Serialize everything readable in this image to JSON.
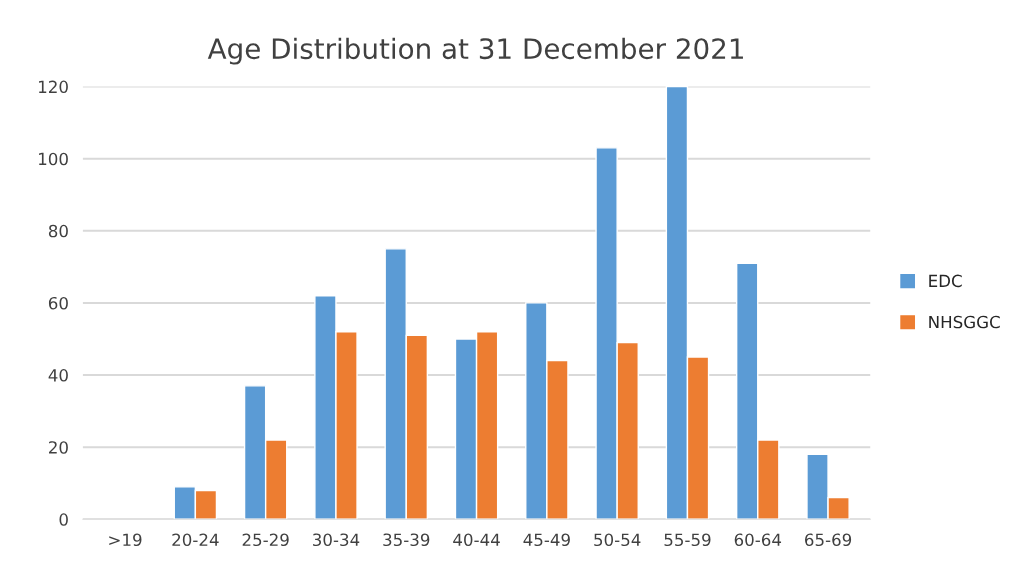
{
  "chart_data": {
    "type": "bar",
    "title": "Age Distribution at 31 December 2021",
    "categories": [
      ">19",
      "20-24",
      "25-29",
      "30-34",
      "35-39",
      "40-44",
      "45-49",
      "50-54",
      "55-59",
      "60-64",
      "65-69"
    ],
    "series": [
      {
        "name": "EDC",
        "color": "#5b9bd5",
        "values": [
          null,
          9,
          37,
          62,
          75,
          50,
          60,
          103,
          120,
          71,
          18
        ]
      },
      {
        "name": "NHSGGC",
        "color": "#ed7d31",
        "values": [
          null,
          8,
          22,
          52,
          51,
          52,
          44,
          49,
          45,
          22,
          6
        ]
      }
    ],
    "ylim": [
      0,
      120
    ],
    "yticks": [
      0,
      20,
      40,
      60,
      80,
      100,
      120
    ],
    "grid": "y",
    "legend": "right"
  }
}
